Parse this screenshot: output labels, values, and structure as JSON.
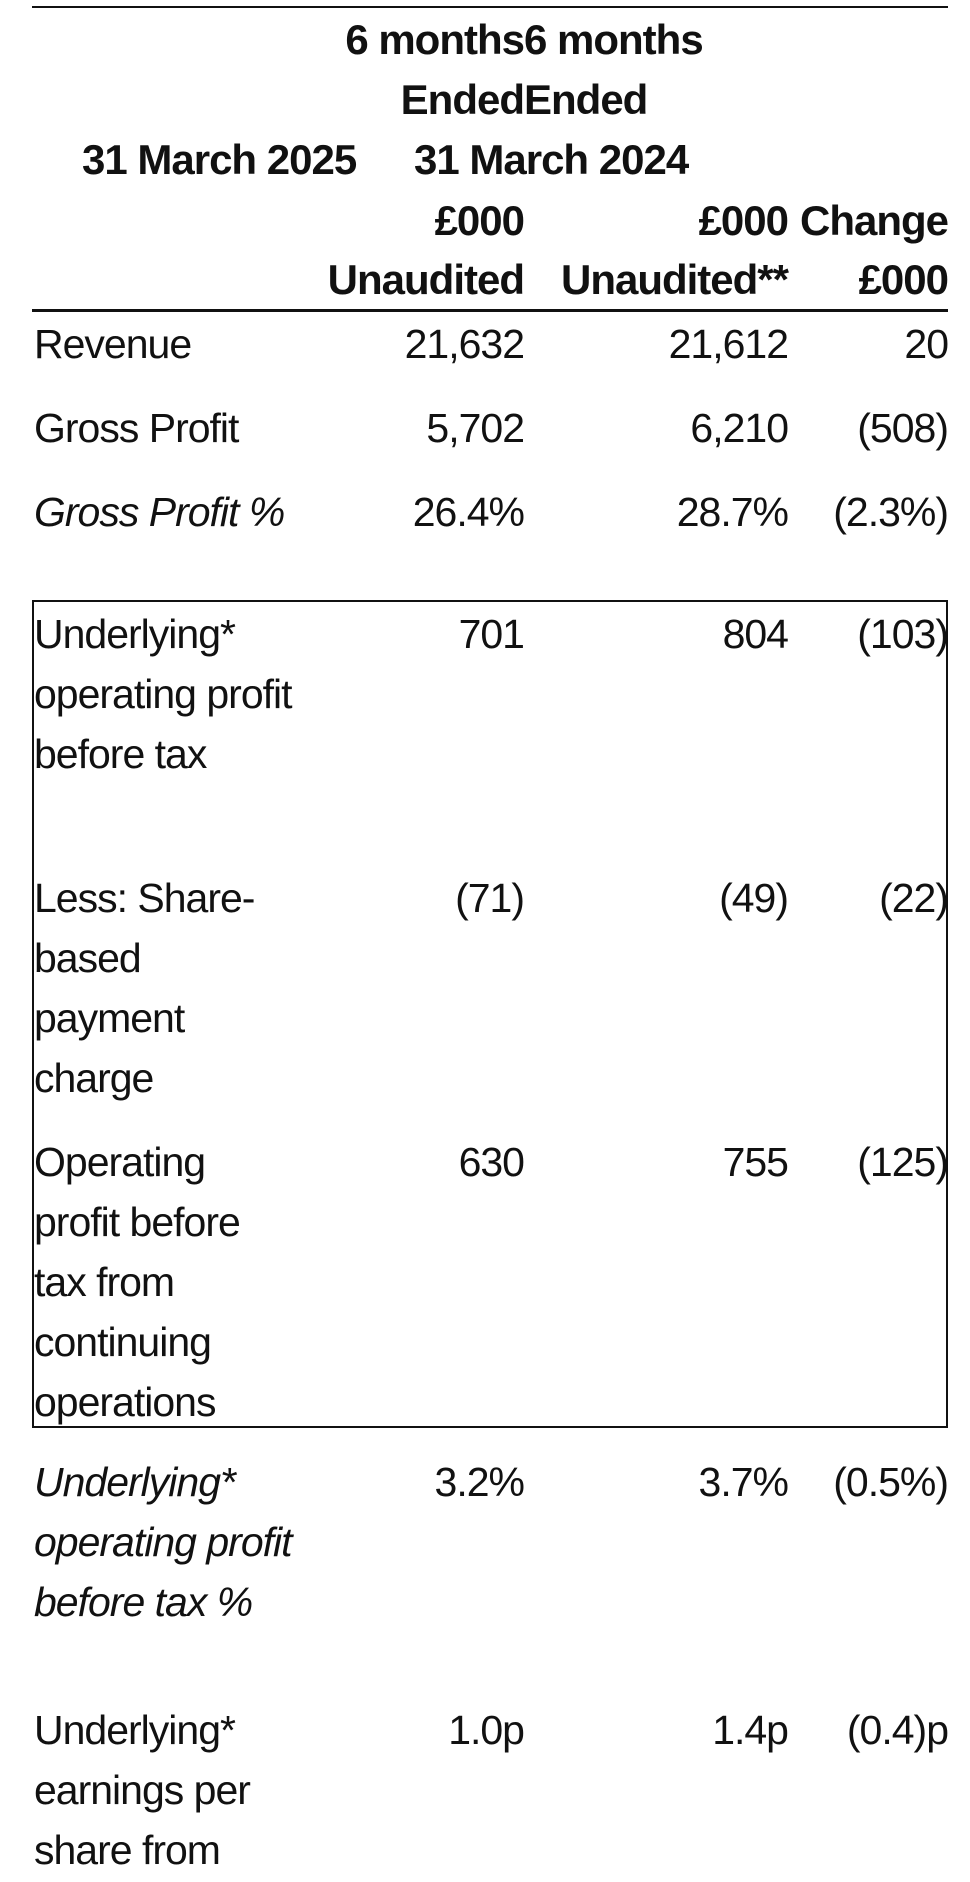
{
  "header": {
    "col1": [
      "6 months",
      "Ended",
      "31 March 2025",
      "£000",
      "Unaudited"
    ],
    "col2": [
      "6 months",
      "Ended",
      "31 March 2024",
      "£000",
      "Unaudited**"
    ],
    "col3": [
      "Change",
      "£000"
    ]
  },
  "table": {
    "rows": [
      {
        "label": "Revenue",
        "values": [
          "21,632",
          "21,612",
          "20"
        ]
      },
      {
        "label": "Gross Profit",
        "values": [
          "5,702",
          "6,210",
          "(508)"
        ]
      },
      {
        "label": "Gross Profit %",
        "italic": true,
        "values": [
          "26.4%",
          "28.7%",
          "(2.3%)"
        ]
      },
      {
        "label": "Underlying* operating profit before tax",
        "values": [
          "701",
          "804",
          "(103)"
        ]
      },
      {
        "label": "Less: Share-based payment charge",
        "values": [
          "(71)",
          "(49)",
          "(22)"
        ]
      },
      {
        "label": "Operating profit before tax from continuing operations",
        "values": [
          "630",
          "755",
          "(125)"
        ]
      },
      {
        "label": "Underlying* operating profit before tax %",
        "italic": true,
        "values": [
          "3.2%",
          "3.7%",
          "(0.5%)"
        ]
      },
      {
        "label": "Underlying* earnings per share from",
        "values": [
          "1.0p",
          "1.4p",
          "(0.4)p"
        ]
      }
    ]
  }
}
